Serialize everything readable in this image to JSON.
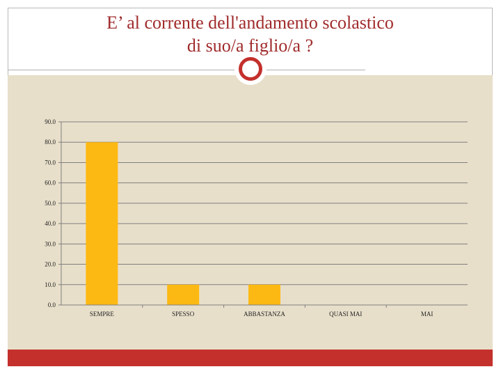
{
  "slide": {
    "title_line1": "E’ al corrente dell'andamento scolastico",
    "title_line2": "di suo/a figlio/a ?"
  },
  "colors": {
    "title": "#a02b2b",
    "accent_red": "#c4302c",
    "panel_bg": "#e8dfca",
    "bar": "#fdb913",
    "grid": "#7f7f7f"
  },
  "chart_data": {
    "type": "bar",
    "categories": [
      "SEMPRE",
      "SPESSO",
      "ABBASTANZA",
      "QUASI MAI",
      "MAI"
    ],
    "values": [
      80.0,
      10.0,
      10.0,
      0.0,
      0.0
    ],
    "ylim": [
      0,
      90
    ],
    "ytick_step": 10,
    "ytick_labels": [
      "0.0",
      "10.0",
      "20.0",
      "30.0",
      "40.0",
      "50.0",
      "60.0",
      "70.0",
      "80.0",
      "90.0"
    ],
    "grid": true,
    "legend": "none",
    "title": "",
    "xlabel": "",
    "ylabel": ""
  }
}
